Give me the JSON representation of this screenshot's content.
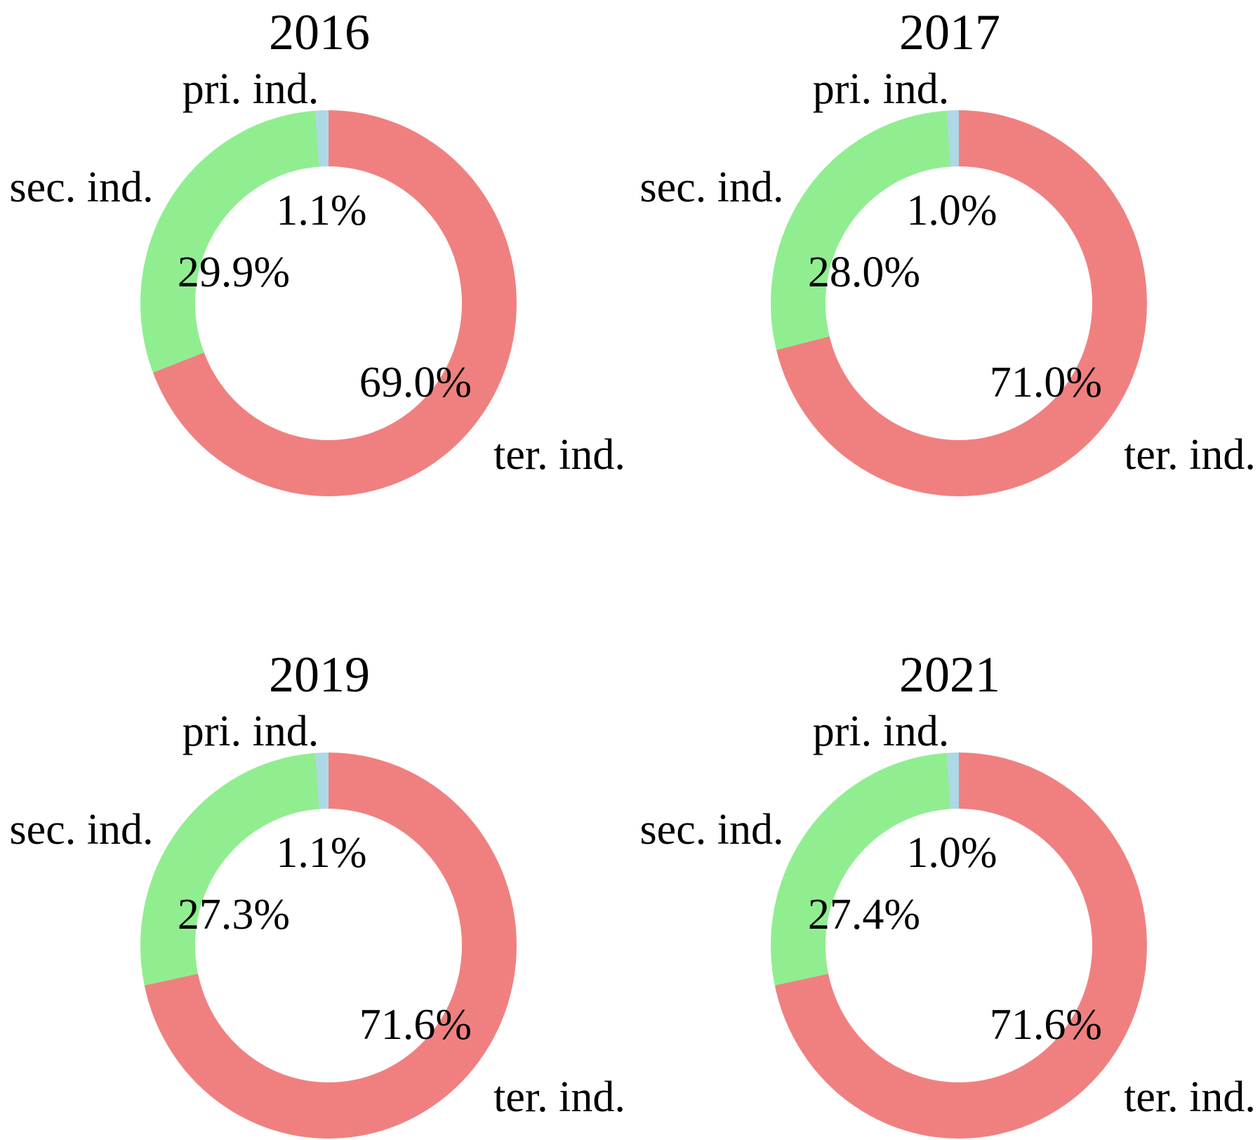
{
  "figure": {
    "background": "#ffffff",
    "text_color": "#000000",
    "layout": "2x2 grid of donut charts"
  },
  "chart_data": [
    {
      "type": "pie",
      "subtype": "donut",
      "title": "2016",
      "labels": [
        "pri. ind.",
        "sec. ind.",
        "ter. ind."
      ],
      "values": [
        1.1,
        29.9,
        69.0
      ],
      "pct_labels": [
        "1.1%",
        "29.9%",
        "69.0%"
      ],
      "colors": [
        "#ADD8E6",
        "#90EE90",
        "#F08080"
      ],
      "start_angle": 90,
      "direction": "counterclockwise",
      "donut_hole_ratio": 0.71
    },
    {
      "type": "pie",
      "subtype": "donut",
      "title": "2017",
      "labels": [
        "pri. ind.",
        "sec. ind.",
        "ter. ind."
      ],
      "values": [
        1.0,
        28.0,
        71.0
      ],
      "pct_labels": [
        "1.0%",
        "28.0%",
        "71.0%"
      ],
      "colors": [
        "#ADD8E6",
        "#90EE90",
        "#F08080"
      ],
      "start_angle": 90,
      "direction": "counterclockwise",
      "donut_hole_ratio": 0.71
    },
    {
      "type": "pie",
      "subtype": "donut",
      "title": "2019",
      "labels": [
        "pri. ind.",
        "sec. ind.",
        "ter. ind."
      ],
      "values": [
        1.1,
        27.3,
        71.6
      ],
      "pct_labels": [
        "1.1%",
        "27.3%",
        "71.6%"
      ],
      "colors": [
        "#ADD8E6",
        "#90EE90",
        "#F08080"
      ],
      "start_angle": 90,
      "direction": "counterclockwise",
      "donut_hole_ratio": 0.71
    },
    {
      "type": "pie",
      "subtype": "donut",
      "title": "2021",
      "labels": [
        "pri. ind.",
        "sec. ind.",
        "ter. ind."
      ],
      "values": [
        1.0,
        27.4,
        71.6
      ],
      "pct_labels": [
        "1.0%",
        "27.4%",
        "71.6%"
      ],
      "colors": [
        "#ADD8E6",
        "#90EE90",
        "#F08080"
      ],
      "start_angle": 90,
      "direction": "counterclockwise",
      "donut_hole_ratio": 0.71
    }
  ]
}
